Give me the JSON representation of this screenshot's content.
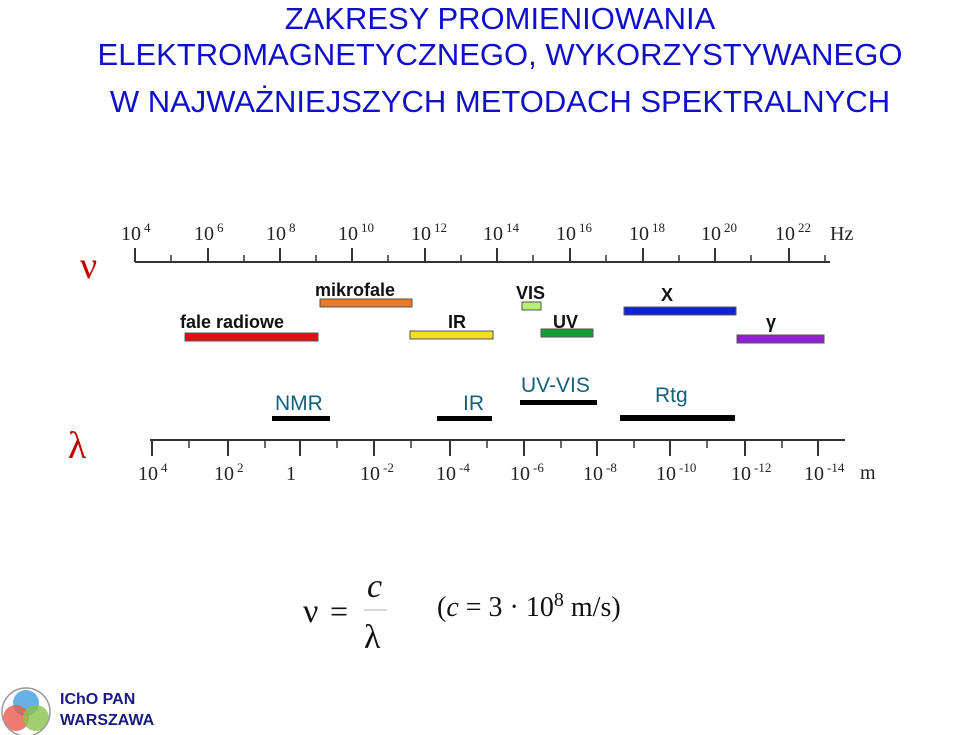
{
  "header": {
    "title": [
      "ZAKRESY PROMIENIOWANIA",
      "ELEKTROMAGNETYCZNEGO, WYKORZYSTYWANEGO",
      "W NAJWAŻNIEJSZYCH METODACH SPEKTRALNYCH"
    ]
  },
  "frequency_axis": {
    "symbol": "ν",
    "unit": "Hz",
    "ticks": [
      {
        "base": "10",
        "exp": "4"
      },
      {
        "base": "10",
        "exp": "6"
      },
      {
        "base": "10",
        "exp": "8"
      },
      {
        "base": "10",
        "exp": "10"
      },
      {
        "base": "10",
        "exp": "12"
      },
      {
        "base": "10",
        "exp": "14"
      },
      {
        "base": "10",
        "exp": "16"
      },
      {
        "base": "10",
        "exp": "18"
      },
      {
        "base": "10",
        "exp": "20"
      },
      {
        "base": "10",
        "exp": "22"
      }
    ]
  },
  "bands": [
    {
      "label": "fale radiowe"
    },
    {
      "label": "mikrofale"
    },
    {
      "label": "IR"
    },
    {
      "label": "VIS"
    },
    {
      "label": "UV"
    },
    {
      "label": "X"
    },
    {
      "label": "γ"
    }
  ],
  "methods": [
    {
      "label": "NMR"
    },
    {
      "label": "IR"
    },
    {
      "label": "UV-VIS"
    },
    {
      "label": "Rtg"
    }
  ],
  "wavelength_axis": {
    "symbol": "λ",
    "unit": "m",
    "ticks": [
      {
        "base": "10",
        "exp": "4"
      },
      {
        "base": "10",
        "exp": "2"
      },
      {
        "base": "1",
        "exp": ""
      },
      {
        "base": "10",
        "exp": "-2"
      },
      {
        "base": "10",
        "exp": "-4"
      },
      {
        "base": "10",
        "exp": "-6"
      },
      {
        "base": "10",
        "exp": "-8"
      },
      {
        "base": "10",
        "exp": "-10"
      },
      {
        "base": "10",
        "exp": "-12"
      },
      {
        "base": "10",
        "exp": "-14"
      }
    ]
  },
  "formula": {
    "lhs": "ν",
    "eq": "=",
    "numerator": "c",
    "denominator": "λ",
    "note": {
      "open": "(",
      "var": "c",
      "rest": " = 3 · 10",
      "exp": "8",
      "unit": " m/s)"
    }
  },
  "footer": {
    "org": "IChO PAN",
    "city": "WARSZAWA"
  }
}
